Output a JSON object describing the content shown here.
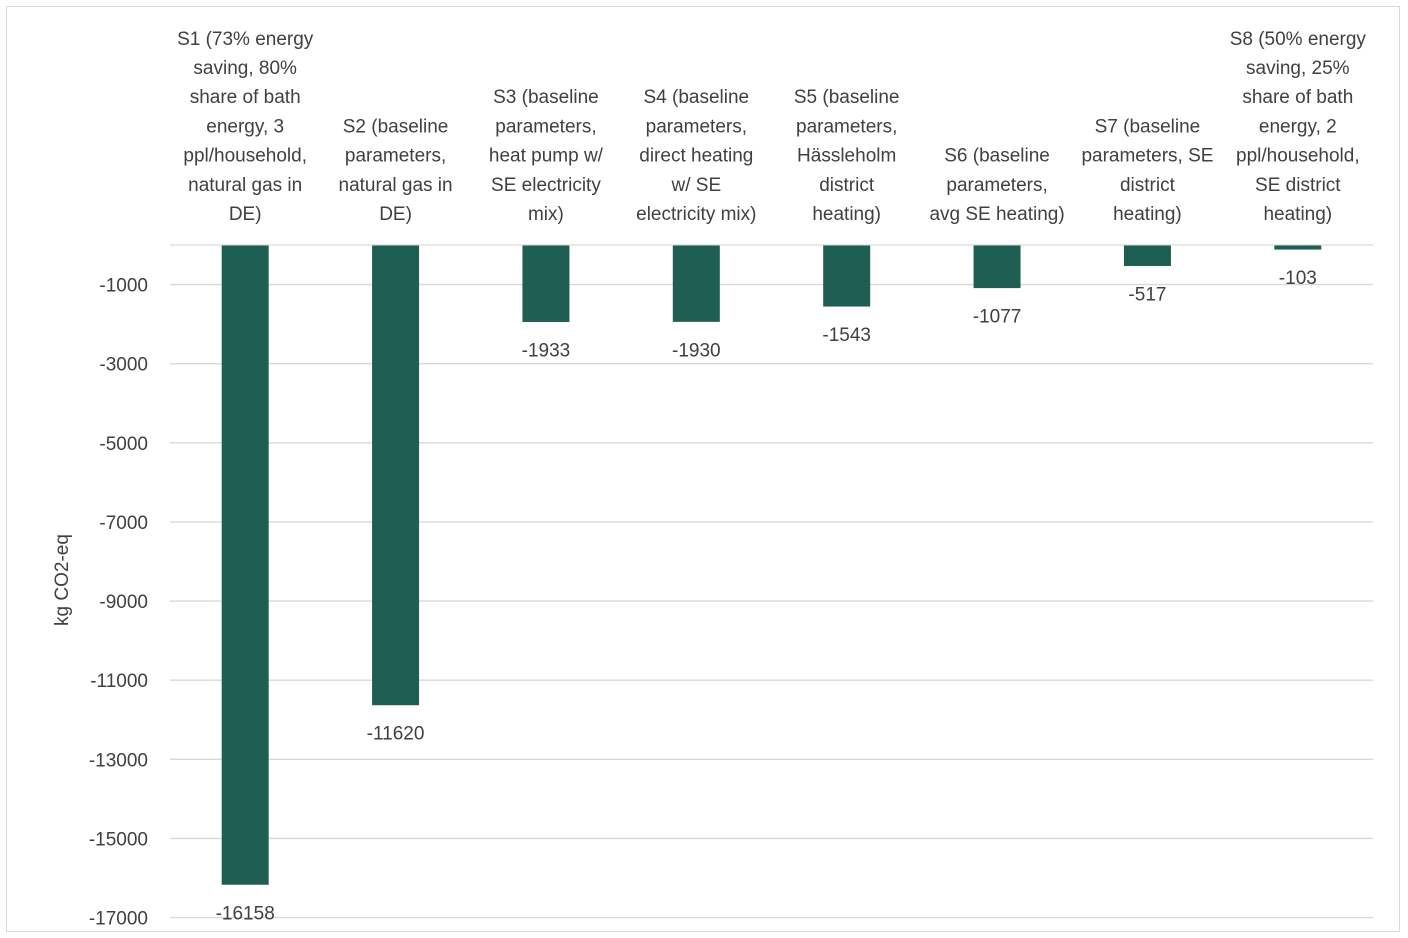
{
  "chart_data": {
    "type": "bar",
    "title": "",
    "xlabel": "",
    "ylabel": "kg CO2-eq",
    "ylim": [
      -17000,
      0
    ],
    "yticks": [
      -1000,
      -3000,
      -5000,
      -7000,
      -9000,
      -11000,
      -13000,
      -15000,
      -17000
    ],
    "grid": true,
    "legend": "none",
    "categories": [
      [
        "S1 (73% energy",
        "saving, 80%",
        "share of bath",
        "energy, 3",
        "ppl/household,",
        "natural gas in",
        "DE)"
      ],
      [
        "S2 (baseline",
        "parameters,",
        "natural gas in",
        "DE)"
      ],
      [
        "S3 (baseline",
        "parameters,",
        "heat pump w/",
        "SE electricity",
        "mix)"
      ],
      [
        "S4 (baseline",
        "parameters,",
        "direct heating",
        "w/ SE",
        "electricity mix)"
      ],
      [
        "S5 (baseline",
        "parameters,",
        "Hässleholm",
        "district",
        "heating)"
      ],
      [
        "S6 (baseline",
        "parameters,",
        "avg SE heating)"
      ],
      [
        "S7 (baseline",
        "parameters, SE",
        "district",
        "heating)"
      ],
      [
        "S8 (50% energy",
        "saving, 25%",
        "share of bath",
        "energy, 2",
        "ppl/household,",
        "SE district",
        "heating)"
      ]
    ],
    "values": [
      -16158,
      -11620,
      -1933,
      -1930,
      -1543,
      -1077,
      -517,
      -103
    ],
    "data_labels": [
      "-16158",
      "-11620",
      "-1933",
      "-1930",
      "-1543",
      "-1077",
      "-517",
      "-103"
    ],
    "colors": {
      "bar": "#1f5f53",
      "grid": "#d9d9d9",
      "text": "#404040"
    }
  }
}
